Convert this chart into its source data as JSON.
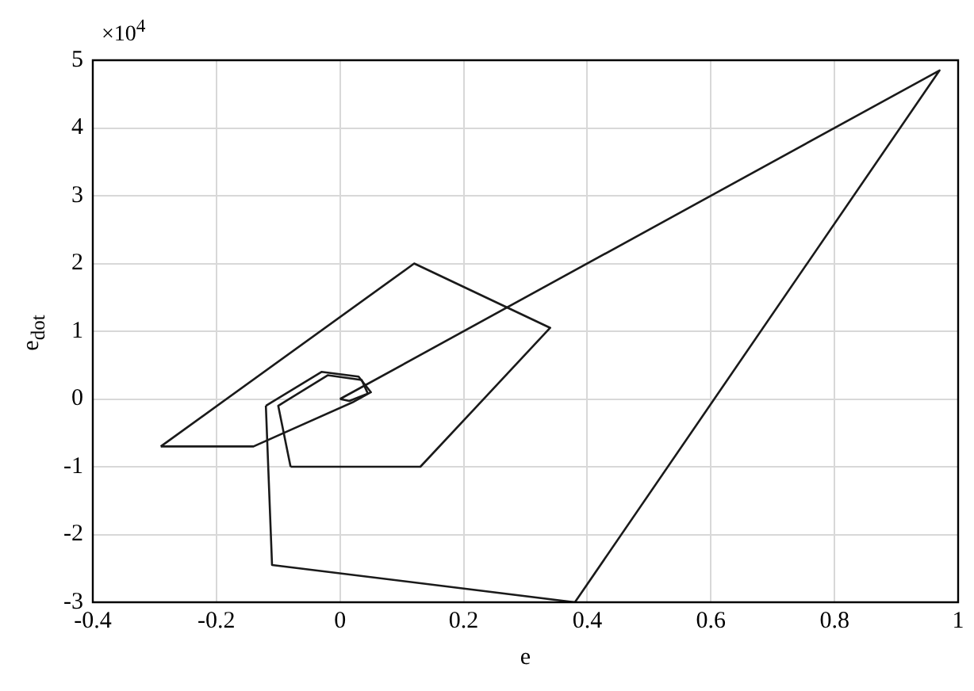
{
  "chart_data": {
    "type": "line",
    "xlabel": "e",
    "ylabel": "e$_{dot}$",
    "annotations": [
      "×10$^{4}$"
    ],
    "series": [
      {
        "color": "#1a1a1a",
        "x": [
          0,
          0.97,
          0.38,
          -0.11,
          -0.12
        ],
        "values": [
          0,
          4.85,
          -3,
          -2.45,
          -0.1
        ]
      },
      {
        "color": "#1a1a1a",
        "x": [
          -0.12,
          -0.03,
          0.03,
          0.05,
          0.02,
          -0.14,
          -0.29
        ],
        "values": [
          -0.1,
          0.4,
          0.33,
          0.1,
          -0.05,
          -0.7,
          -0.7
        ]
      },
      {
        "color": "#1a1a1a",
        "x": [
          -0.29,
          0.12,
          0.34,
          0.13,
          -0.08
        ],
        "values": [
          -0.7,
          2,
          1.05,
          -1,
          -1
        ]
      },
      {
        "color": "#1a1a1a",
        "x": [
          -0.08,
          -0.1,
          -0.02,
          0.035,
          0.045,
          0.015,
          0
        ],
        "values": [
          -1,
          -0.1,
          0.35,
          0.28,
          0.08,
          -0.03,
          0
        ]
      }
    ],
    "xlim": [
      -0.4,
      1
    ],
    "xticks": [
      -0.4,
      -0.2,
      0,
      0.2,
      0.4,
      0.6,
      0.8,
      1
    ],
    "ylim": [
      -3,
      5
    ],
    "yticks": [
      -3,
      -2,
      -1,
      0,
      1,
      2,
      3,
      4,
      5
    ],
    "grid": true,
    "legend": false,
    "marker": "none",
    "line_style": "solid"
  }
}
